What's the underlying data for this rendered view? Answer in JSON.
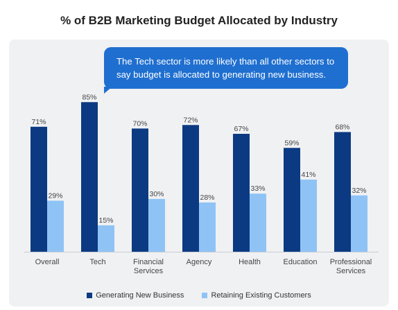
{
  "chart_data": {
    "type": "bar",
    "title": "% of B2B Marketing Budget Allocated by Industry",
    "callout": "The Tech sector is more likely than all other sectors to say budget is allocated to generating new business.",
    "categories": [
      [
        "Overall"
      ],
      [
        "Tech"
      ],
      [
        "Financial",
        "Services"
      ],
      [
        "Agency"
      ],
      [
        "Health"
      ],
      [
        "Education"
      ],
      [
        "Professional",
        "Services"
      ]
    ],
    "series": [
      {
        "name": "Generating New Business",
        "color": "#0b3a82",
        "values": [
          71,
          85,
          70,
          72,
          67,
          59,
          68
        ],
        "labels": [
          "71%",
          "85%",
          "70%",
          "72%",
          "67%",
          "59%",
          "68%"
        ]
      },
      {
        "name": "Retaining Existing Customers",
        "color": "#8fc3f5",
        "values": [
          29,
          15,
          30,
          28,
          33,
          41,
          32
        ],
        "labels": [
          "29%",
          "15%",
          "30%",
          "28%",
          "33%",
          "41%",
          "32%"
        ]
      }
    ],
    "ylim": [
      0,
      100
    ],
    "grid": false,
    "legend_position": "bottom"
  }
}
